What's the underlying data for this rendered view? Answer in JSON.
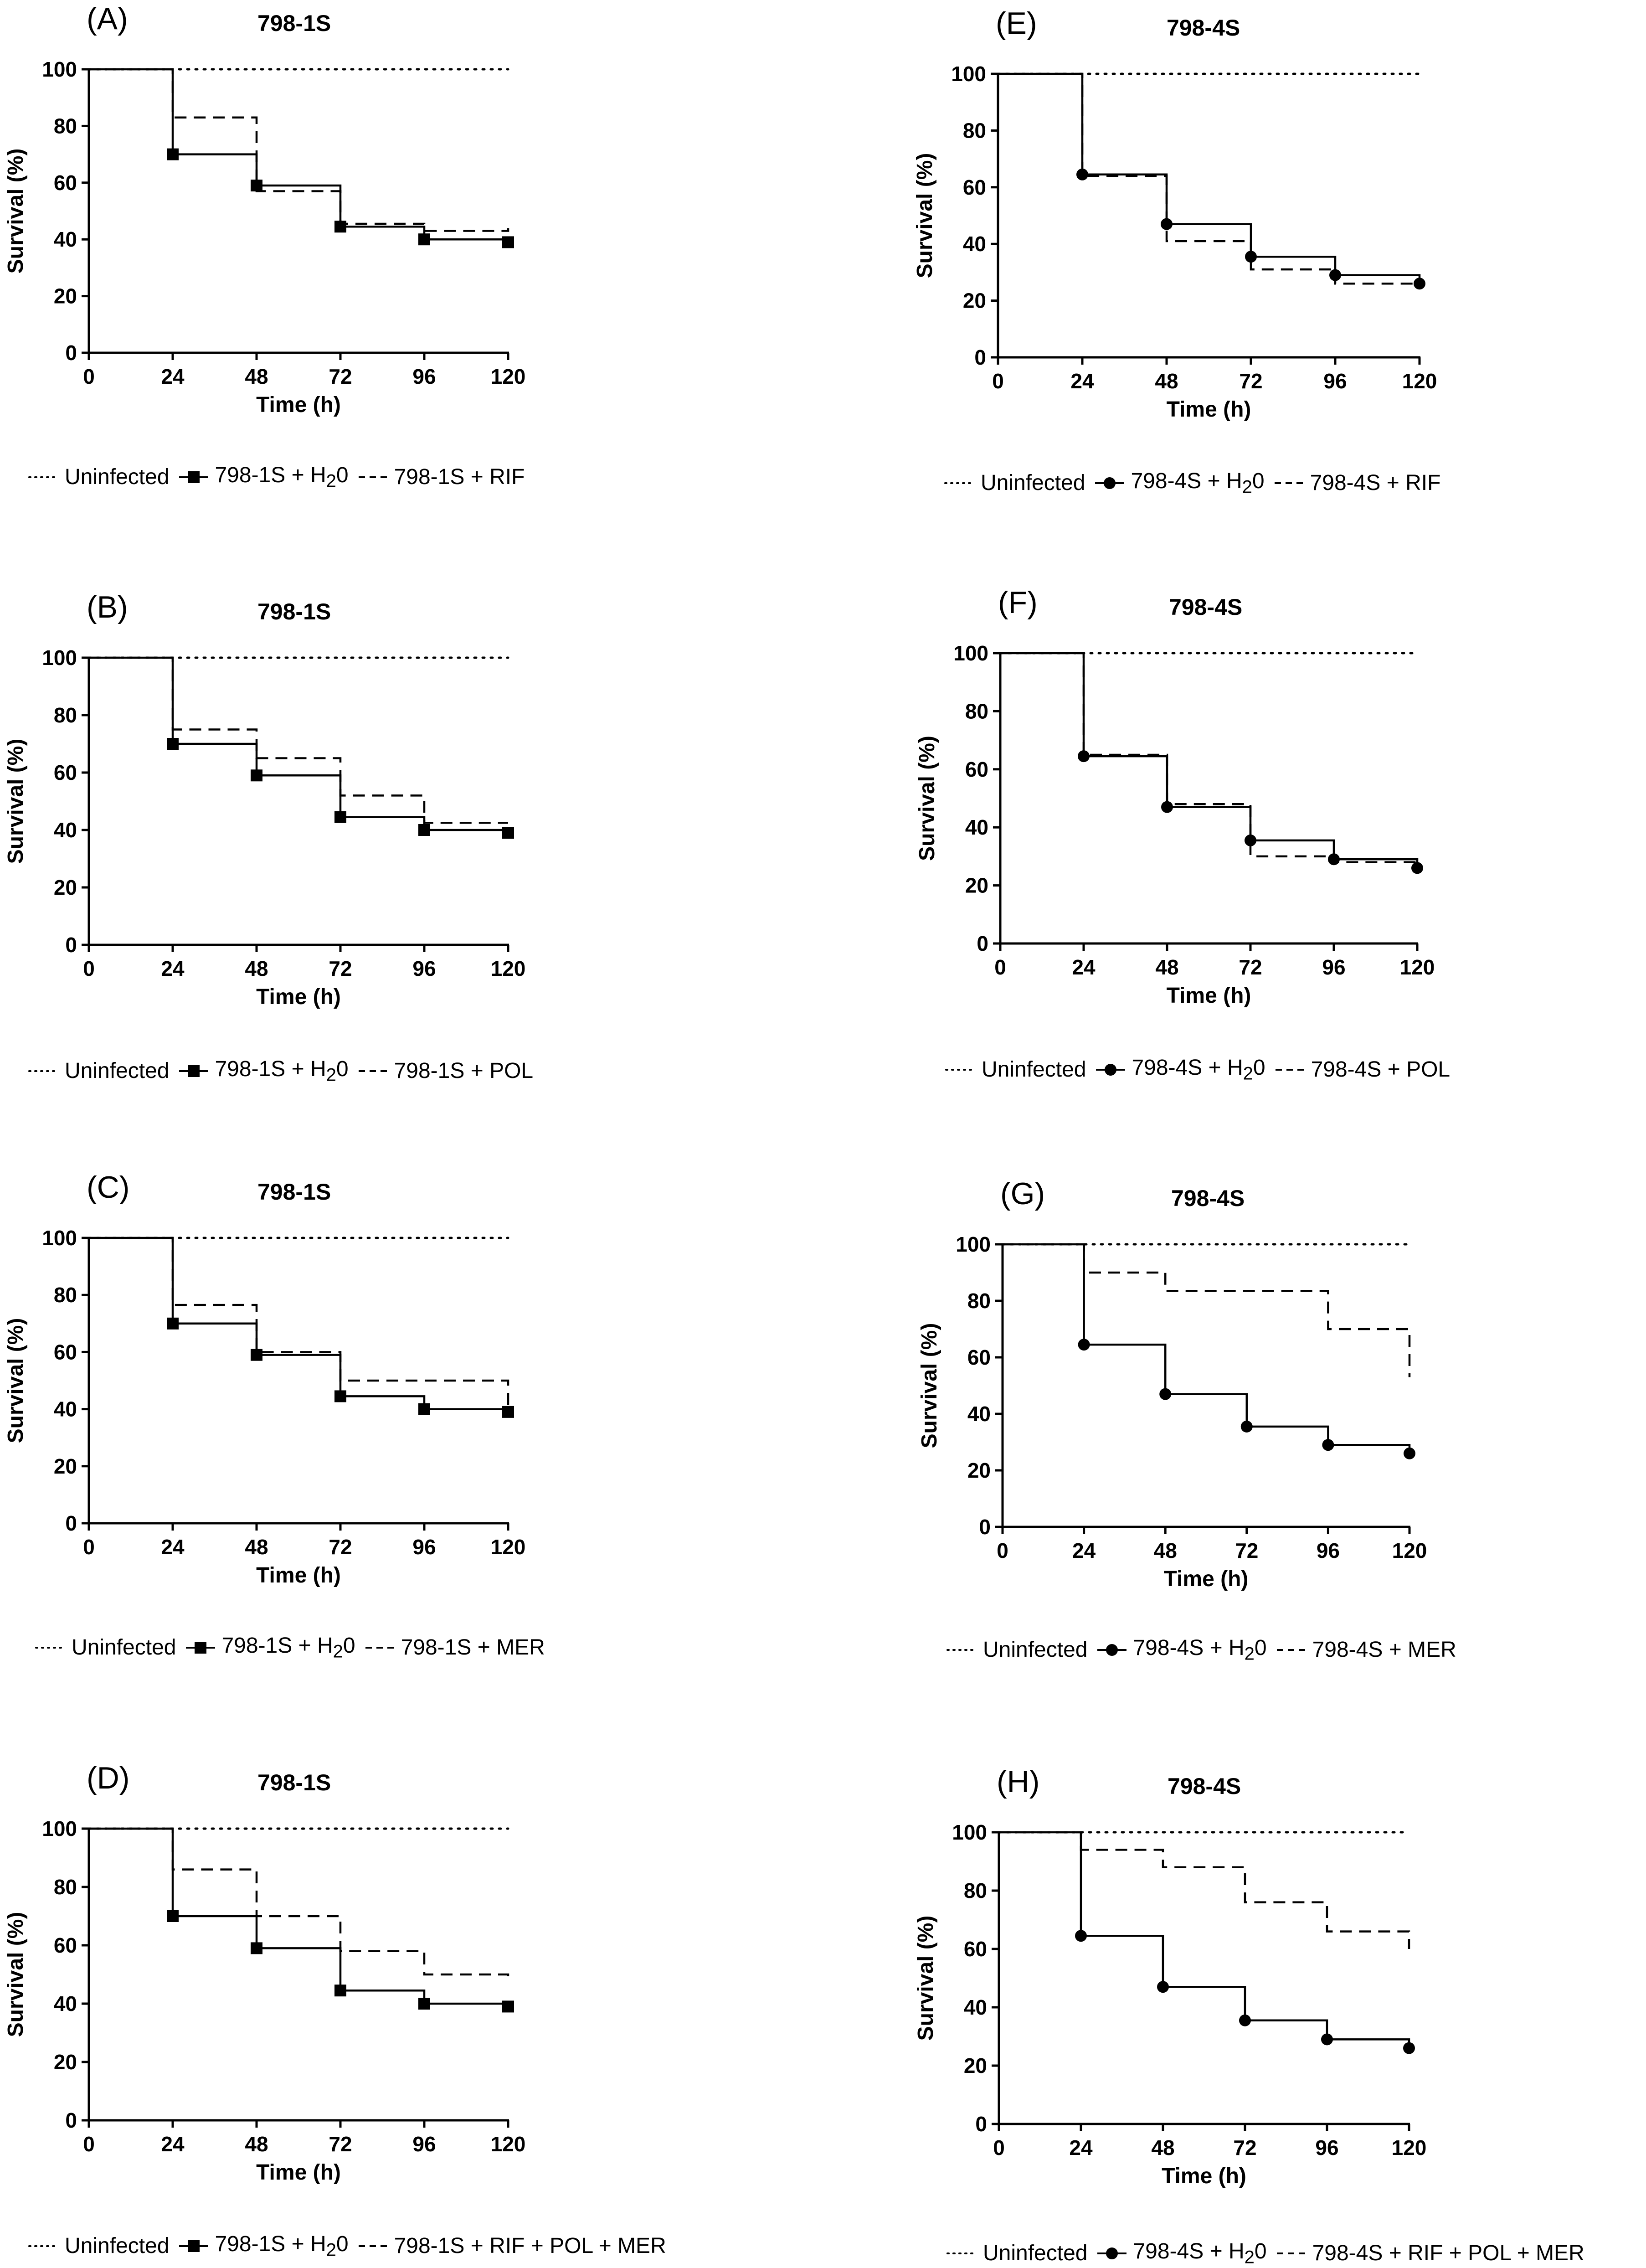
{
  "figure": {
    "background": "#ffffff",
    "line_color": "#000000"
  },
  "chart_data": [
    {
      "id": "A",
      "panel_label": "(A)",
      "type": "line",
      "subtype": "kaplan-meier-step",
      "title": "798-1S",
      "xlabel": "Time (h)",
      "ylabel": "Survival (%)",
      "xlim": [
        0,
        120
      ],
      "ylim": [
        0,
        100
      ],
      "xticks": [
        "0",
        "24",
        "48",
        "72",
        "96",
        "120"
      ],
      "yticks": [
        "0",
        "20",
        "40",
        "60",
        "80",
        "100"
      ],
      "marker": "square",
      "series": [
        {
          "name": "Uninfected",
          "legend_text": "Uninfected",
          "style": "dotted",
          "x": [
            0,
            120
          ],
          "y": [
            100,
            100
          ]
        },
        {
          "name": "798-1S + H20",
          "legend_prefix": "798-1S + H",
          "legend_sub": "2",
          "legend_suffix": "0",
          "style": "solid",
          "markers": true,
          "x": [
            0,
            24,
            48,
            72,
            96,
            120
          ],
          "y": [
            100,
            70,
            59,
            44.5,
            40,
            39
          ]
        },
        {
          "name": "798-1S + RIF",
          "legend_text": "798-1S + RIF",
          "style": "dashed",
          "x": [
            0,
            24,
            48,
            72,
            96,
            120
          ],
          "y": [
            100,
            83,
            57,
            45.5,
            43,
            44
          ]
        }
      ]
    },
    {
      "id": "B",
      "panel_label": "(B)",
      "type": "line",
      "subtype": "kaplan-meier-step",
      "title": "798-1S",
      "xlabel": "Time (h)",
      "ylabel": "Survival (%)",
      "xlim": [
        0,
        120
      ],
      "ylim": [
        0,
        100
      ],
      "xticks": [
        "0",
        "24",
        "48",
        "72",
        "96",
        "120"
      ],
      "yticks": [
        "0",
        "20",
        "40",
        "60",
        "80",
        "100"
      ],
      "marker": "square",
      "series": [
        {
          "name": "Uninfected",
          "legend_text": "Uninfected",
          "style": "dotted",
          "x": [
            0,
            120
          ],
          "y": [
            100,
            100
          ]
        },
        {
          "name": "798-1S + H20",
          "legend_prefix": "798-1S + H",
          "legend_sub": "2",
          "legend_suffix": "0",
          "style": "solid",
          "markers": true,
          "x": [
            0,
            24,
            48,
            72,
            96,
            120
          ],
          "y": [
            100,
            70,
            59,
            44.5,
            40,
            39
          ]
        },
        {
          "name": "798-1S + POL",
          "legend_text": "798-1S + POL",
          "style": "dashed",
          "x": [
            0,
            24,
            48,
            72,
            96,
            120
          ],
          "y": [
            100,
            75,
            65,
            52,
            42.5,
            42.5
          ]
        }
      ]
    },
    {
      "id": "C",
      "panel_label": "(C)",
      "type": "line",
      "subtype": "kaplan-meier-step",
      "title": "798-1S",
      "xlabel": "Time (h)",
      "ylabel": "Survival (%)",
      "xlim": [
        0,
        120
      ],
      "ylim": [
        0,
        100
      ],
      "xticks": [
        "0",
        "24",
        "48",
        "72",
        "96",
        "120"
      ],
      "yticks": [
        "0",
        "20",
        "40",
        "60",
        "80",
        "100"
      ],
      "marker": "square",
      "series": [
        {
          "name": "Uninfected",
          "legend_text": "Uninfected",
          "style": "dotted",
          "x": [
            0,
            120
          ],
          "y": [
            100,
            100
          ]
        },
        {
          "name": "798-1S + H20",
          "legend_prefix": "798-1S + H",
          "legend_sub": "2",
          "legend_suffix": "0",
          "style": "solid",
          "markers": true,
          "x": [
            0,
            24,
            48,
            72,
            96,
            120
          ],
          "y": [
            100,
            70,
            59,
            44.5,
            40,
            39
          ]
        },
        {
          "name": "798-1S + MER",
          "legend_text": "798-1S + MER",
          "style": "dashed",
          "x": [
            0,
            24,
            48,
            72,
            96,
            120
          ],
          "y": [
            100,
            76.5,
            60,
            50,
            50,
            40
          ]
        }
      ]
    },
    {
      "id": "D",
      "panel_label": "(D)",
      "type": "line",
      "subtype": "kaplan-meier-step",
      "title": "798-1S",
      "xlabel": "Time (h)",
      "ylabel": "Survival (%)",
      "xlim": [
        0,
        120
      ],
      "ylim": [
        0,
        100
      ],
      "xticks": [
        "0",
        "24",
        "48",
        "72",
        "96",
        "120"
      ],
      "yticks": [
        "0",
        "20",
        "40",
        "60",
        "80",
        "100"
      ],
      "marker": "square",
      "series": [
        {
          "name": "Uninfected",
          "legend_text": "Uninfected",
          "style": "dotted",
          "x": [
            0,
            120
          ],
          "y": [
            100,
            100
          ]
        },
        {
          "name": "798-1S + H20",
          "legend_prefix": "798-1S + H",
          "legend_sub": "2",
          "legend_suffix": "0",
          "style": "solid",
          "markers": true,
          "x": [
            0,
            24,
            48,
            72,
            96,
            120
          ],
          "y": [
            100,
            70,
            59,
            44.5,
            40,
            39
          ]
        },
        {
          "name": "798-1S + RIF + POL + MER",
          "legend_text": "798-1S + RIF + POL + MER",
          "style": "dashed",
          "x": [
            0,
            24,
            48,
            72,
            96,
            120
          ],
          "y": [
            100,
            86,
            70,
            58,
            50,
            48
          ]
        }
      ]
    },
    {
      "id": "E",
      "panel_label": "(E)",
      "type": "line",
      "subtype": "kaplan-meier-step",
      "title": "798-4S",
      "xlabel": "Time (h)",
      "ylabel": "Survival (%)",
      "xlim": [
        0,
        120
      ],
      "ylim": [
        0,
        100
      ],
      "xticks": [
        "0",
        "24",
        "48",
        "72",
        "96",
        "120"
      ],
      "yticks": [
        "0",
        "20",
        "40",
        "60",
        "80",
        "100"
      ],
      "marker": "circle",
      "series": [
        {
          "name": "Uninfected",
          "legend_text": "Uninfected",
          "style": "dotted",
          "x": [
            0,
            120
          ],
          "y": [
            100,
            100
          ]
        },
        {
          "name": "798-4S + H20",
          "legend_prefix": "798-4S + H",
          "legend_sub": "2",
          "legend_suffix": "0",
          "style": "solid",
          "markers": true,
          "x": [
            0,
            24,
            48,
            72,
            96,
            120
          ],
          "y": [
            100,
            64.5,
            47,
            35.5,
            29,
            26
          ]
        },
        {
          "name": "798-4S + RIF",
          "legend_text": "798-4S + RIF",
          "style": "dashed",
          "x": [
            0,
            24,
            48,
            72,
            96,
            120
          ],
          "y": [
            100,
            64,
            41,
            31,
            26,
            26
          ]
        }
      ]
    },
    {
      "id": "F",
      "panel_label": "(F)",
      "type": "line",
      "subtype": "kaplan-meier-step",
      "title": "798-4S",
      "xlabel": "Time (h)",
      "ylabel": "Survival (%)",
      "xlim": [
        0,
        120
      ],
      "ylim": [
        0,
        100
      ],
      "xticks": [
        "0",
        "24",
        "48",
        "72",
        "96",
        "120"
      ],
      "yticks": [
        "0",
        "20",
        "40",
        "60",
        "80",
        "100"
      ],
      "marker": "circle",
      "series": [
        {
          "name": "Uninfected",
          "legend_text": "Uninfected",
          "style": "dotted",
          "x": [
            0,
            120
          ],
          "y": [
            100,
            100
          ]
        },
        {
          "name": "798-4S + H20",
          "legend_prefix": "798-4S + H",
          "legend_sub": "2",
          "legend_suffix": "0",
          "style": "solid",
          "markers": true,
          "x": [
            0,
            24,
            48,
            72,
            96,
            120
          ],
          "y": [
            100,
            64.5,
            47,
            35.5,
            29,
            26
          ]
        },
        {
          "name": "798-4S + POL",
          "legend_text": "798-4S + POL",
          "style": "dashed",
          "x": [
            0,
            24,
            48,
            72,
            96,
            120
          ],
          "y": [
            100,
            65,
            48,
            30,
            28,
            28
          ]
        }
      ]
    },
    {
      "id": "G",
      "panel_label": "(G)",
      "type": "line",
      "subtype": "kaplan-meier-step",
      "title": "798-4S",
      "xlabel": "Time (h)",
      "ylabel": "Survival (%)",
      "xlim": [
        0,
        120
      ],
      "ylim": [
        0,
        100
      ],
      "xticks": [
        "0",
        "24",
        "48",
        "72",
        "96",
        "120"
      ],
      "yticks": [
        "0",
        "20",
        "40",
        "60",
        "80",
        "100"
      ],
      "marker": "circle",
      "series": [
        {
          "name": "Uninfected",
          "legend_text": "Uninfected",
          "style": "dotted",
          "x": [
            0,
            120
          ],
          "y": [
            100,
            100
          ]
        },
        {
          "name": "798-4S + H20",
          "legend_prefix": "798-4S + H",
          "legend_sub": "2",
          "legend_suffix": "0",
          "style": "solid",
          "markers": true,
          "x": [
            0,
            24,
            48,
            72,
            96,
            120
          ],
          "y": [
            100,
            64.5,
            47,
            35.5,
            29,
            26
          ]
        },
        {
          "name": "798-4S + MER",
          "legend_text": "798-4S + MER",
          "style": "dashed",
          "x": [
            0,
            24,
            48,
            72,
            96,
            120
          ],
          "y": [
            100,
            90,
            83.5,
            83.5,
            70,
            53
          ]
        }
      ]
    },
    {
      "id": "H",
      "panel_label": "(H)",
      "type": "line",
      "subtype": "kaplan-meier-step",
      "title": "798-4S",
      "xlabel": "Time (h)",
      "ylabel": "Survival (%)",
      "xlim": [
        0,
        120
      ],
      "ylim": [
        0,
        100
      ],
      "xticks": [
        "0",
        "24",
        "48",
        "72",
        "96",
        "120"
      ],
      "yticks": [
        "0",
        "20",
        "40",
        "60",
        "80",
        "100"
      ],
      "marker": "circle",
      "series": [
        {
          "name": "Uninfected",
          "legend_text": "Uninfected",
          "style": "dotted",
          "x": [
            0,
            120
          ],
          "y": [
            100,
            100
          ]
        },
        {
          "name": "798-4S + H20",
          "legend_prefix": "798-4S + H",
          "legend_sub": "2",
          "legend_suffix": "0",
          "style": "solid",
          "markers": true,
          "x": [
            0,
            24,
            48,
            72,
            96,
            120
          ],
          "y": [
            100,
            64.5,
            47,
            35.5,
            29,
            26
          ]
        },
        {
          "name": "798-4S + RIF + POL + MER",
          "legend_text": "798-4S + RIF + POL + MER",
          "style": "dashed",
          "x": [
            0,
            24,
            48,
            72,
            96,
            120
          ],
          "y": [
            100,
            94,
            88,
            76,
            66,
            60
          ]
        }
      ]
    }
  ]
}
